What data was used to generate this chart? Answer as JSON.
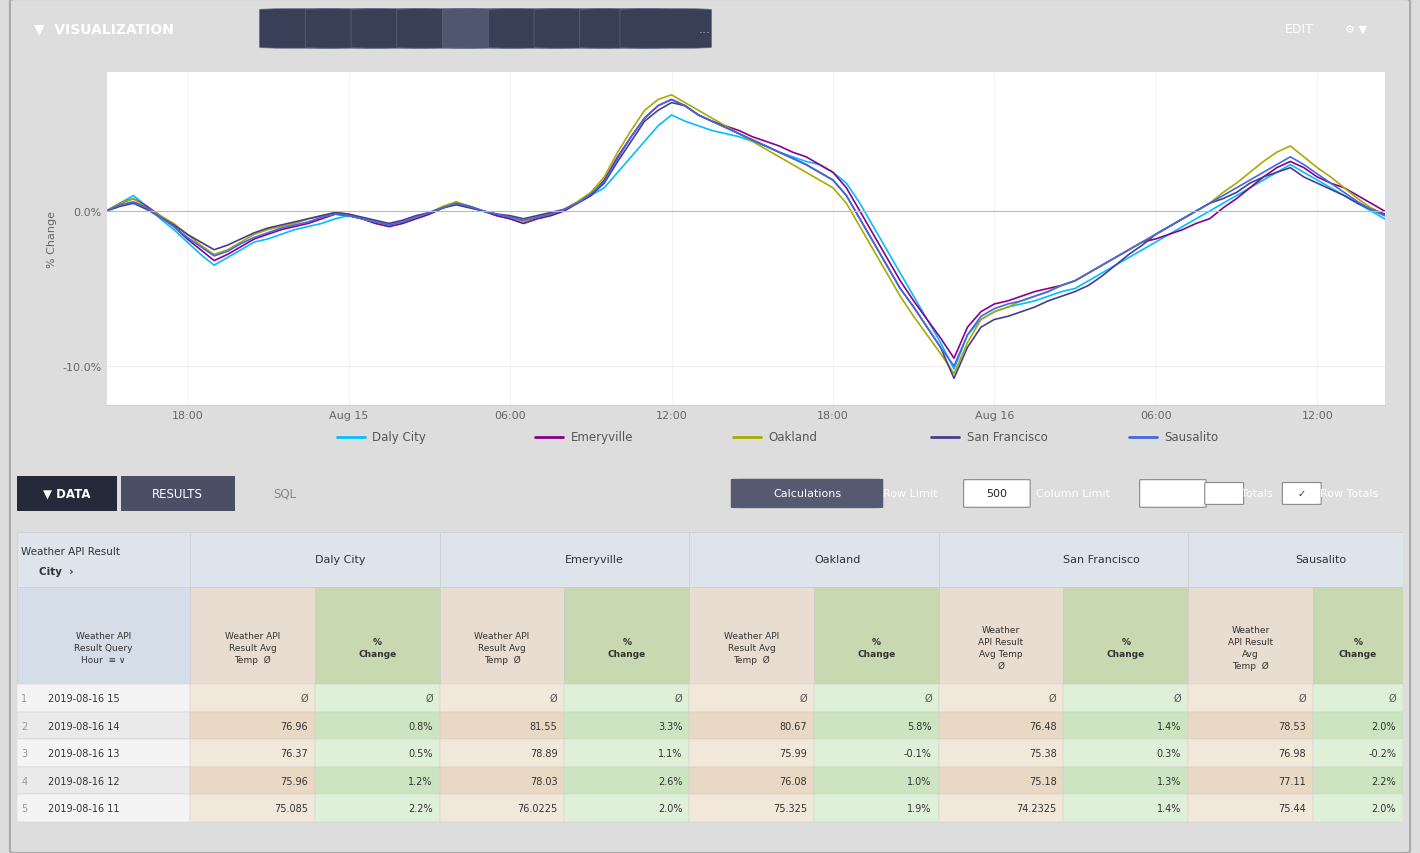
{
  "legend_cities": [
    "Daly City",
    "Emeryville",
    "Oakland",
    "San Francisco",
    "Sausalito"
  ],
  "legend_colors": [
    "#00BFFF",
    "#8B008B",
    "#AAAA00",
    "#483D8B",
    "#4169E1"
  ],
  "x_ticks": [
    "18:00",
    "Aug 15",
    "06:00",
    "12:00",
    "18:00",
    "Aug 16",
    "06:00",
    "12:00"
  ],
  "x_tick_pos": [
    6,
    18,
    30,
    42,
    54,
    66,
    78,
    90
  ],
  "line_data_x": [
    0,
    1,
    2,
    3,
    4,
    5,
    6,
    7,
    8,
    9,
    10,
    11,
    12,
    13,
    14,
    15,
    16,
    17,
    18,
    19,
    20,
    21,
    22,
    23,
    24,
    25,
    26,
    27,
    28,
    29,
    30,
    31,
    32,
    33,
    34,
    35,
    36,
    37,
    38,
    39,
    40,
    41,
    42,
    43,
    44,
    45,
    46,
    47,
    48,
    49,
    50,
    51,
    52,
    53,
    54,
    55,
    56,
    57,
    58,
    59,
    60,
    61,
    62,
    63,
    64,
    65,
    66,
    67,
    68,
    69,
    70,
    71,
    72,
    73,
    74,
    75,
    76,
    77,
    78,
    79,
    80,
    81,
    82,
    83,
    84,
    85,
    86,
    87,
    88,
    89,
    90,
    91,
    92,
    93,
    94,
    95
  ],
  "daly_city_y": [
    0.0,
    0.5,
    1.0,
    0.3,
    -0.5,
    -1.2,
    -2.0,
    -2.8,
    -3.5,
    -3.0,
    -2.5,
    -2.0,
    -1.8,
    -1.5,
    -1.2,
    -1.0,
    -0.8,
    -0.5,
    -0.3,
    -0.5,
    -0.8,
    -1.0,
    -0.8,
    -0.5,
    -0.2,
    0.2,
    0.5,
    0.3,
    0.0,
    -0.3,
    -0.5,
    -0.8,
    -0.5,
    -0.3,
    0.0,
    0.5,
    1.0,
    1.5,
    2.5,
    3.5,
    4.5,
    5.5,
    6.2,
    5.8,
    5.5,
    5.2,
    5.0,
    4.8,
    4.5,
    4.2,
    3.8,
    3.5,
    3.2,
    3.0,
    2.5,
    1.8,
    0.5,
    -1.0,
    -2.5,
    -4.0,
    -5.5,
    -7.0,
    -8.5,
    -10.2,
    -8.0,
    -7.0,
    -6.5,
    -6.2,
    -6.0,
    -5.8,
    -5.5,
    -5.2,
    -5.0,
    -4.5,
    -4.0,
    -3.5,
    -3.0,
    -2.5,
    -2.0,
    -1.5,
    -1.0,
    -0.5,
    0.0,
    0.5,
    1.0,
    1.5,
    2.0,
    2.5,
    3.0,
    2.5,
    2.0,
    1.5,
    1.0,
    0.5,
    0.0,
    -0.5
  ],
  "emeryville_y": [
    0.0,
    0.5,
    0.8,
    0.3,
    -0.3,
    -1.0,
    -1.8,
    -2.5,
    -3.2,
    -2.8,
    -2.3,
    -1.8,
    -1.5,
    -1.2,
    -1.0,
    -0.8,
    -0.5,
    -0.2,
    -0.3,
    -0.5,
    -0.8,
    -1.0,
    -0.8,
    -0.5,
    -0.2,
    0.2,
    0.5,
    0.3,
    0.0,
    -0.3,
    -0.5,
    -0.8,
    -0.5,
    -0.3,
    0.0,
    0.5,
    1.0,
    2.0,
    3.5,
    4.8,
    6.0,
    6.8,
    7.2,
    6.8,
    6.2,
    5.8,
    5.5,
    5.2,
    4.8,
    4.5,
    4.2,
    3.8,
    3.5,
    3.0,
    2.5,
    1.5,
    0.0,
    -1.5,
    -3.0,
    -4.5,
    -5.8,
    -7.0,
    -8.2,
    -9.5,
    -7.5,
    -6.5,
    -6.0,
    -5.8,
    -5.5,
    -5.2,
    -5.0,
    -4.8,
    -4.5,
    -4.0,
    -3.5,
    -3.0,
    -2.5,
    -2.0,
    -1.8,
    -1.5,
    -1.2,
    -0.8,
    -0.5,
    0.2,
    0.8,
    1.5,
    2.2,
    2.8,
    3.2,
    2.8,
    2.2,
    1.8,
    1.5,
    1.0,
    0.5,
    0.0
  ],
  "oakland_y": [
    0.0,
    0.5,
    0.8,
    0.2,
    -0.3,
    -0.8,
    -1.5,
    -2.2,
    -2.8,
    -2.5,
    -2.0,
    -1.5,
    -1.2,
    -1.0,
    -0.8,
    -0.5,
    -0.3,
    -0.1,
    -0.2,
    -0.5,
    -0.7,
    -0.9,
    -0.7,
    -0.4,
    -0.1,
    0.3,
    0.6,
    0.3,
    0.0,
    -0.2,
    -0.4,
    -0.7,
    -0.4,
    -0.2,
    0.1,
    0.6,
    1.2,
    2.2,
    3.8,
    5.2,
    6.5,
    7.2,
    7.5,
    7.0,
    6.5,
    6.0,
    5.5,
    5.0,
    4.5,
    4.0,
    3.5,
    3.0,
    2.5,
    2.0,
    1.5,
    0.5,
    -1.0,
    -2.5,
    -4.0,
    -5.5,
    -6.8,
    -8.0,
    -9.2,
    -10.5,
    -8.5,
    -7.0,
    -6.5,
    -6.2,
    -5.8,
    -5.5,
    -5.2,
    -4.8,
    -4.5,
    -4.0,
    -3.5,
    -3.0,
    -2.5,
    -2.0,
    -1.5,
    -1.0,
    -0.5,
    0.0,
    0.5,
    1.2,
    1.8,
    2.5,
    3.2,
    3.8,
    4.2,
    3.5,
    2.8,
    2.2,
    1.5,
    0.8,
    0.2,
    -0.2
  ],
  "sf_y": [
    0.0,
    0.3,
    0.5,
    0.1,
    -0.4,
    -0.9,
    -1.5,
    -2.0,
    -2.5,
    -2.2,
    -1.8,
    -1.4,
    -1.1,
    -0.9,
    -0.7,
    -0.5,
    -0.3,
    -0.1,
    -0.2,
    -0.4,
    -0.6,
    -0.8,
    -0.6,
    -0.3,
    -0.1,
    0.2,
    0.4,
    0.2,
    0.0,
    -0.2,
    -0.3,
    -0.5,
    -0.3,
    -0.1,
    0.1,
    0.5,
    1.0,
    1.8,
    3.2,
    4.5,
    5.8,
    6.5,
    7.0,
    6.8,
    6.2,
    5.8,
    5.4,
    5.0,
    4.6,
    4.2,
    3.8,
    3.4,
    3.0,
    2.5,
    2.0,
    1.0,
    -0.5,
    -2.0,
    -3.5,
    -5.0,
    -6.2,
    -7.5,
    -8.8,
    -10.8,
    -8.8,
    -7.5,
    -7.0,
    -6.8,
    -6.5,
    -6.2,
    -5.8,
    -5.5,
    -5.2,
    -4.8,
    -4.2,
    -3.5,
    -2.8,
    -2.2,
    -1.5,
    -1.0,
    -0.5,
    0.0,
    0.5,
    0.8,
    1.2,
    1.8,
    2.2,
    2.5,
    2.8,
    2.2,
    1.8,
    1.4,
    1.0,
    0.5,
    0.1,
    -0.2
  ],
  "sausalito_y": [
    0.0,
    0.4,
    0.6,
    0.2,
    -0.4,
    -1.0,
    -1.7,
    -2.3,
    -2.9,
    -2.6,
    -2.1,
    -1.7,
    -1.4,
    -1.1,
    -0.9,
    -0.7,
    -0.4,
    -0.2,
    -0.3,
    -0.5,
    -0.7,
    -0.9,
    -0.7,
    -0.4,
    -0.1,
    0.2,
    0.5,
    0.3,
    0.0,
    -0.2,
    -0.4,
    -0.6,
    -0.4,
    -0.2,
    0.1,
    0.5,
    1.1,
    1.9,
    3.4,
    4.8,
    6.0,
    6.8,
    7.2,
    6.8,
    6.2,
    5.8,
    5.4,
    5.0,
    4.6,
    4.2,
    3.8,
    3.4,
    3.0,
    2.5,
    2.0,
    1.0,
    -0.5,
    -2.0,
    -3.5,
    -5.0,
    -6.2,
    -7.5,
    -8.8,
    -10.0,
    -8.0,
    -6.8,
    -6.3,
    -6.0,
    -5.8,
    -5.5,
    -5.2,
    -4.8,
    -4.5,
    -4.0,
    -3.5,
    -3.0,
    -2.5,
    -2.0,
    -1.5,
    -1.0,
    -0.5,
    0.0,
    0.5,
    1.0,
    1.5,
    2.0,
    2.5,
    3.0,
    3.5,
    3.0,
    2.4,
    1.8,
    1.2,
    0.6,
    0.1,
    -0.3
  ],
  "table_rows": [
    {
      "row": "1",
      "date": "2019-08-16 15",
      "daly": "",
      "daly_pct": "",
      "emery": "",
      "emery_pct": "",
      "oak": "",
      "oak_pct": "",
      "sf": "",
      "sf_pct": "",
      "saus": "",
      "saus_pct": ""
    },
    {
      "row": "2",
      "date": "2019-08-16 14",
      "daly": "76.96",
      "daly_pct": "0.8%",
      "emery": "81.55",
      "emery_pct": "3.3%",
      "oak": "80.67",
      "oak_pct": "5.8%",
      "sf": "76.48",
      "sf_pct": "1.4%",
      "saus": "78.53",
      "saus_pct": "2.0%"
    },
    {
      "row": "3",
      "date": "2019-08-16 13",
      "daly": "76.37",
      "daly_pct": "0.5%",
      "emery": "78.89",
      "emery_pct": "1.1%",
      "oak": "75.99",
      "oak_pct": "-0.1%",
      "sf": "75.38",
      "sf_pct": "0.3%",
      "saus": "76.98",
      "saus_pct": "-0.2%"
    },
    {
      "row": "4",
      "date": "2019-08-16 12",
      "daly": "75.96",
      "daly_pct": "1.2%",
      "emery": "78.03",
      "emery_pct": "2.6%",
      "oak": "76.08",
      "oak_pct": "1.0%",
      "sf": "75.18",
      "sf_pct": "1.3%",
      "saus": "77.11",
      "saus_pct": "2.2%"
    },
    {
      "row": "5",
      "date": "2019-08-16 11",
      "daly": "75.085",
      "daly_pct": "2.2%",
      "emery": "76.0225",
      "emery_pct": "2.0%",
      "oak": "75.325",
      "oak_pct": "1.9%",
      "sf": "74.2325",
      "sf_pct": "1.4%",
      "saus": "75.44",
      "saus_pct": "2.0%"
    }
  ],
  "col_bounds": [
    0.0,
    0.125,
    0.215,
    0.305,
    0.395,
    0.485,
    0.575,
    0.665,
    0.755,
    0.845,
    0.935,
    1.0
  ],
  "city_names": [
    "Daly City",
    "Emeryville",
    "Oakland",
    "San Francisco",
    "Sausalito"
  ],
  "city_header_bgs": [
    "#e8d8c0",
    "#c8e0c8",
    "#c8e0c8",
    "#c8e0c8",
    "#c8e0c8"
  ],
  "sub_bgs": [
    "#d0dce8",
    "#e8ddd0",
    "#c8d8b0",
    "#e8ddd0",
    "#c8d8b0",
    "#e8ddd0",
    "#c8d8b0",
    "#e8ddd0",
    "#c8d8b0",
    "#e8ddd0",
    "#c8d8b0"
  ],
  "row_bgs_even": [
    "#f8f8f8",
    "#f5ede0",
    "#e8f0e0",
    "#f5ede0",
    "#e8f0e0",
    "#f5ede0",
    "#e8f0e0",
    "#f5ede0",
    "#e8f0e0",
    "#f5ede0",
    "#e8f0e0"
  ],
  "row_bgs_odd": [
    "#eeeeee",
    "#eedcc8",
    "#dce8cc",
    "#eedcc8",
    "#dce8cc",
    "#eedcc8",
    "#dce8cc",
    "#eedcc8",
    "#dce8cc",
    "#eedcc8",
    "#dce8cc"
  ]
}
